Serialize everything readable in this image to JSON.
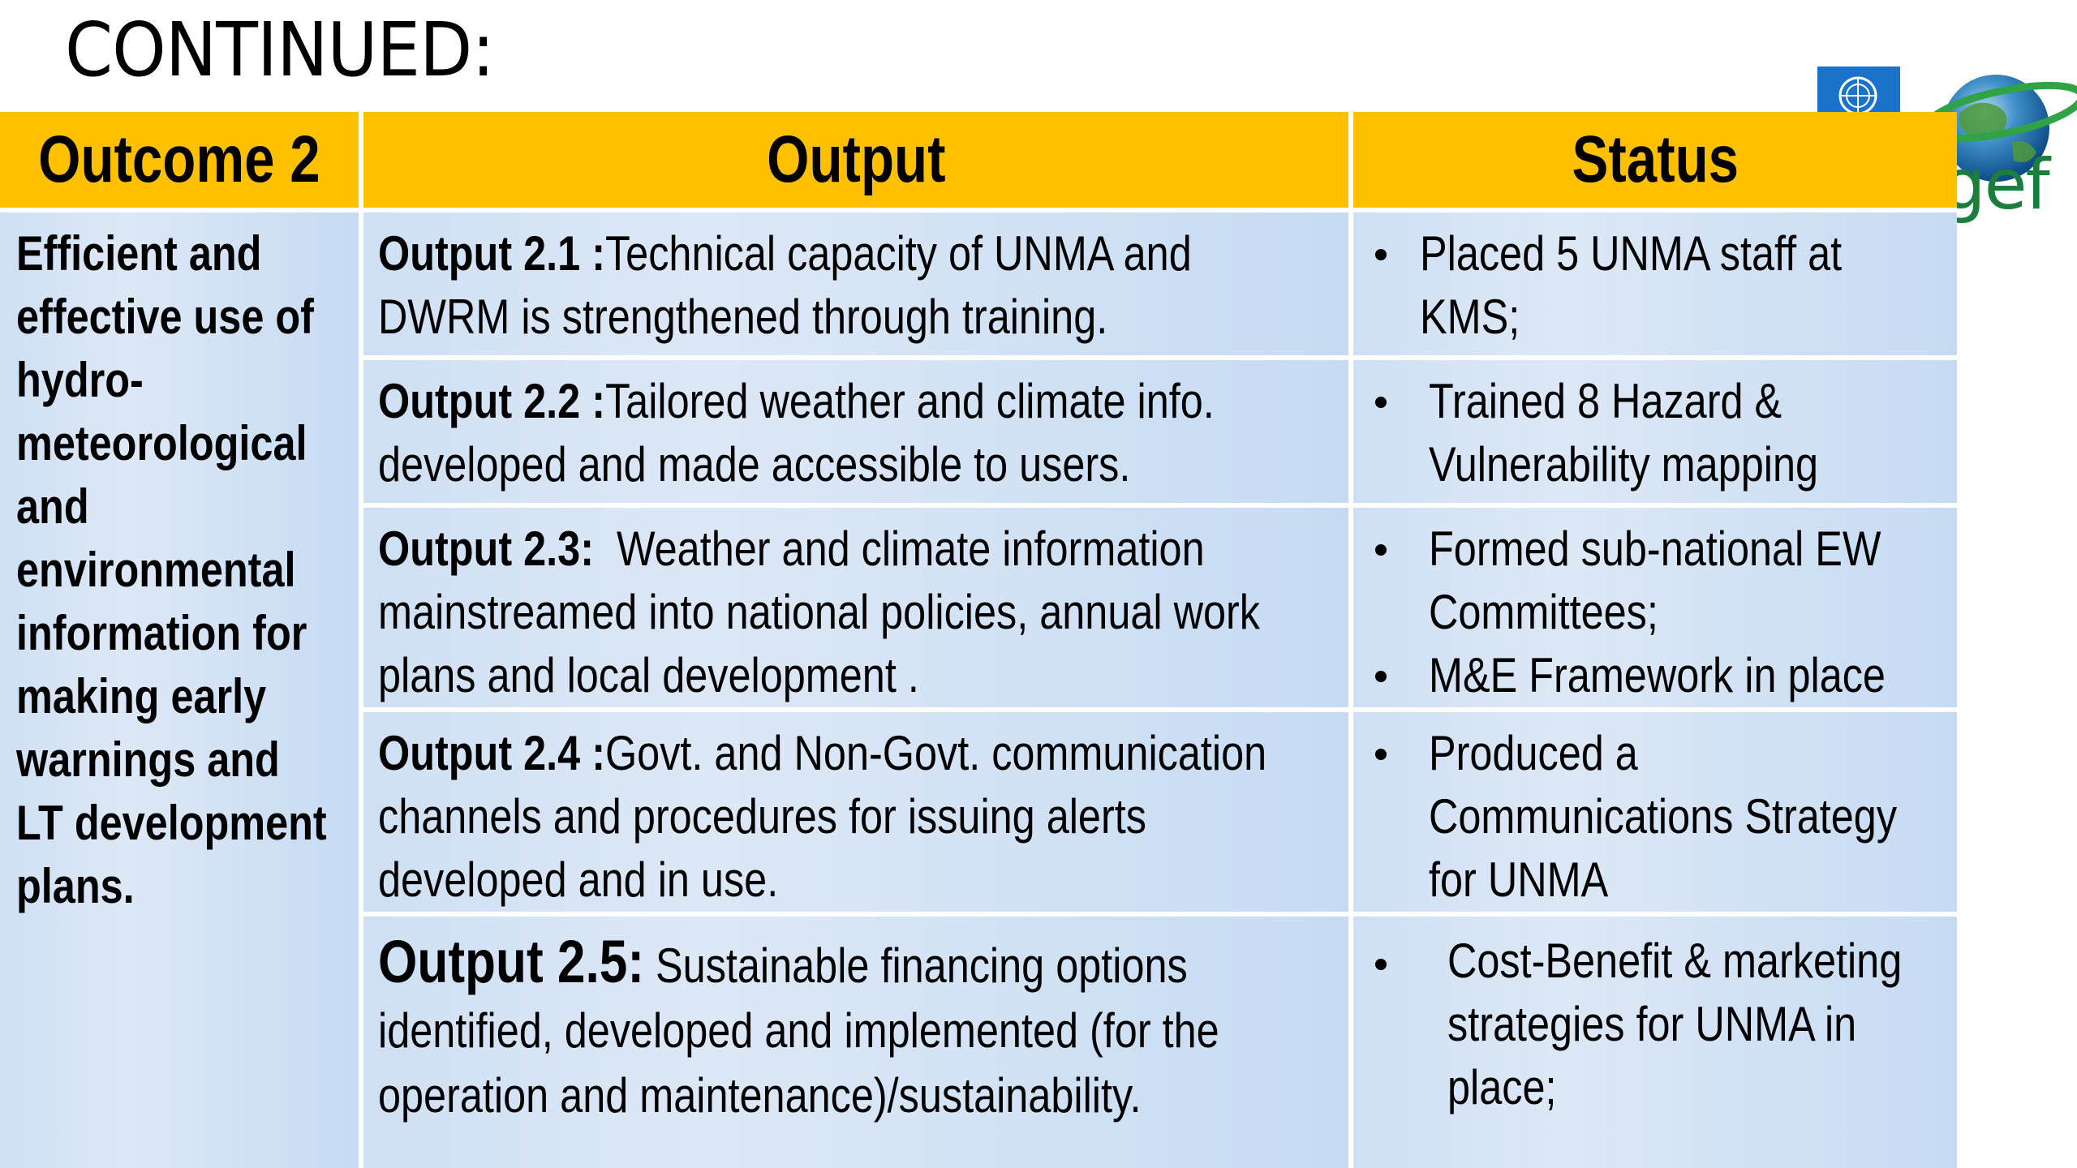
{
  "slide": {
    "title": "CONTINUED:"
  },
  "logos": {
    "gef_text": "gef"
  },
  "table": {
    "headers": {
      "outcome": "Outcome 2",
      "output": "Output",
      "status": "Status"
    },
    "outcome_lines": [
      "Efficient and",
      "effective use of",
      "hydro-",
      "meteorological",
      "and",
      "environmental",
      "information for",
      "making early",
      "warnings and",
      "LT development",
      "plans."
    ],
    "rows": [
      {
        "label": "Output 2.1 :",
        "line1": "Technical capacity of UNMA and",
        "line2": "DWRM is strengthened through training.",
        "status": [
          {
            "lines": [
              "Placed 5 UNMA staff at",
              "KMS;"
            ]
          }
        ]
      },
      {
        "label": "Output 2.2 :",
        "line1": "Tailored weather and climate info.",
        "line2": "developed and made accessible to users.",
        "status": [
          {
            "lines": [
              "Trained 8 Hazard &",
              "Vulnerability mapping"
            ]
          }
        ]
      },
      {
        "label": "Output 2.3:",
        "line1": "  Weather and climate information",
        "line2": "mainstreamed into national policies, annual work",
        "line3": "plans and local development .",
        "status": [
          {
            "lines": [
              "Formed sub-national EW",
              "Committees;"
            ]
          },
          {
            "lines": [
              "M&E Framework in place"
            ]
          }
        ]
      },
      {
        "label": "Output 2.4 :",
        "line1": "Govt. and Non-Govt. communication",
        "line2": "channels and procedures for issuing alerts",
        "line3": "developed and in use.",
        "status": [
          {
            "lines": [
              "Produced a",
              "Communications Strategy",
              "for UNMA"
            ]
          }
        ]
      },
      {
        "label": "Output 2.5:",
        "line1": " Sustainable financing options",
        "line2": "identified, developed and implemented (for the",
        "line3": "operation and maintenance)/sustainability.",
        "status": [
          {
            "lines": [
              "Cost-Benefit & marketing",
              "strategies for UNMA in",
              "place;"
            ]
          }
        ]
      }
    ]
  }
}
